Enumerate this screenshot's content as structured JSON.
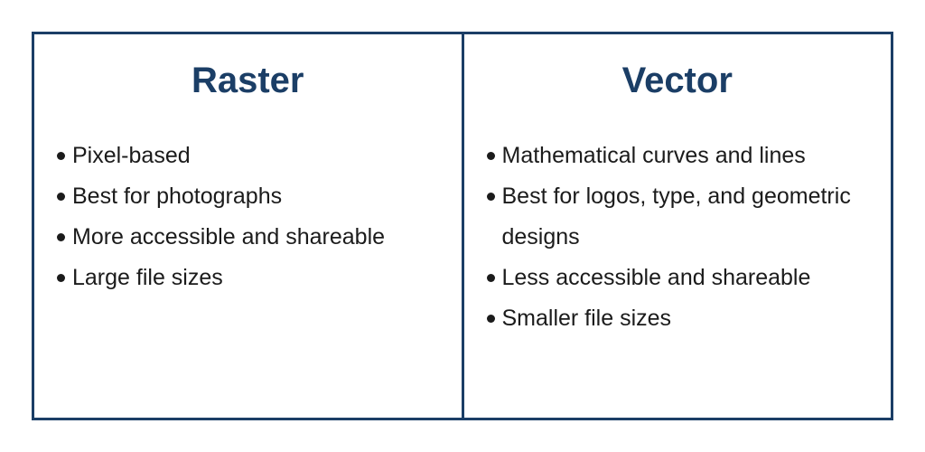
{
  "colors": {
    "accent": "#1b3e66",
    "text": "#1b1b1b",
    "background": "#ffffff"
  },
  "raster": {
    "title": "Raster",
    "items": [
      "Pixel-based",
      "Best for photographs",
      "More accessible and shareable",
      "Large file sizes"
    ]
  },
  "vector": {
    "title": "Vector",
    "items": [
      "Mathematical curves and lines",
      "Best for logos, type, and geometric designs",
      "Less accessible and shareable",
      "Smaller file sizes"
    ]
  }
}
